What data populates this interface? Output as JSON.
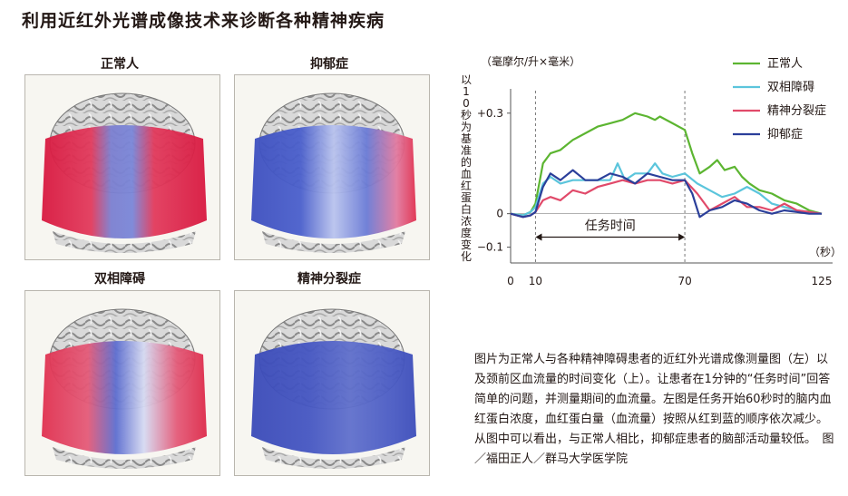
{
  "title": "利用近红外光谱成像技术来诊断各种精神疾病",
  "panels": [
    {
      "label": "正常人"
    },
    {
      "label": "抑郁症"
    },
    {
      "label": "双相障碍"
    },
    {
      "label": "精神分裂症"
    }
  ],
  "colors": {
    "normal": "#5cb531",
    "bipolar": "#5bc5dc",
    "schizophrenia": "#e14a6a",
    "depression": "#2b3f9a"
  },
  "caption": "图片为正常人与各种精神障碍患者的近红外光谱成像测量图（左）以及颈前区血流量的时间变化（上）。让患者在1分钟的“任务时间”回答简单的问题，并测量期间的血流量。左图是任务开始60秒时的脑内血红蛋白浓度，血红蛋白量（血流量）按照从红到蓝的顺序依次减少。从图中可以看出，与正常人相比，抑郁症患者的脑部活动量较低。　图／福田正人／群马大学医学院",
  "chart_data": {
    "type": "line",
    "unit_label": "（毫摩尔/升×毫米）",
    "ylabel": "以10秒为基准的血红蛋白浓度变化",
    "xlabel": "（秒）",
    "y_ticks": [
      "+0.3",
      "0",
      "−0.1"
    ],
    "x_ticks": [
      "0",
      "10",
      "70",
      "125"
    ],
    "annotation": "任务时间",
    "xlim": [
      0,
      125
    ],
    "ylim": [
      -0.12,
      0.34
    ],
    "task_window": [
      10,
      70
    ],
    "series": [
      {
        "name": "正常人",
        "color": "#5cb531",
        "x": [
          0,
          5,
          8,
          10,
          13,
          16,
          20,
          25,
          30,
          35,
          40,
          45,
          50,
          55,
          58,
          60,
          65,
          70,
          73,
          76,
          80,
          83,
          86,
          90,
          93,
          96,
          100,
          105,
          110,
          115,
          120,
          125
        ],
        "y": [
          0,
          -0.005,
          0.005,
          0.03,
          0.15,
          0.18,
          0.19,
          0.22,
          0.24,
          0.26,
          0.27,
          0.28,
          0.3,
          0.29,
          0.28,
          0.29,
          0.27,
          0.25,
          0.18,
          0.12,
          0.14,
          0.16,
          0.13,
          0.14,
          0.11,
          0.09,
          0.07,
          0.06,
          0.04,
          0.03,
          0.01,
          0
        ]
      },
      {
        "name": "双相障碍",
        "color": "#5bc5dc",
        "x": [
          0,
          5,
          8,
          10,
          13,
          16,
          20,
          25,
          30,
          35,
          40,
          43,
          46,
          50,
          55,
          58,
          61,
          65,
          70,
          75,
          80,
          85,
          90,
          95,
          100,
          105,
          110,
          115,
          120,
          125
        ],
        "y": [
          0,
          -0.005,
          0.005,
          0.02,
          0.09,
          0.11,
          0.09,
          0.1,
          0.1,
          0.1,
          0.1,
          0.15,
          0.1,
          0.12,
          0.12,
          0.15,
          0.12,
          0.11,
          0.12,
          0.09,
          0.07,
          0.05,
          0.06,
          0.08,
          0.06,
          0.03,
          0.02,
          0.01,
          0.005,
          0
        ]
      },
      {
        "name": "精神分裂症",
        "color": "#e14a6a",
        "x": [
          0,
          5,
          8,
          10,
          13,
          16,
          20,
          25,
          30,
          35,
          40,
          45,
          50,
          55,
          60,
          65,
          70,
          75,
          80,
          85,
          90,
          95,
          100,
          105,
          110,
          115,
          120,
          125
        ],
        "y": [
          0,
          -0.01,
          -0.005,
          0.005,
          0.04,
          0.05,
          0.04,
          0.07,
          0.06,
          0.08,
          0.09,
          0.1,
          0.09,
          0.1,
          0.1,
          0.09,
          0.1,
          0.06,
          0.01,
          0.03,
          0.05,
          0.02,
          0.02,
          0.01,
          0.03,
          0.01,
          0.005,
          0
        ]
      },
      {
        "name": "抑郁症",
        "color": "#2b3f9a",
        "x": [
          0,
          5,
          8,
          10,
          13,
          16,
          20,
          25,
          30,
          35,
          40,
          45,
          50,
          55,
          60,
          65,
          70,
          73,
          76,
          80,
          85,
          90,
          95,
          100,
          105,
          110,
          115,
          120,
          125
        ],
        "y": [
          0,
          -0.01,
          -0.005,
          0.005,
          0.08,
          0.12,
          0.1,
          0.13,
          0.1,
          0.1,
          0.12,
          0.11,
          0.09,
          0.12,
          0.11,
          0.1,
          0.1,
          0.06,
          -0.01,
          0.01,
          0.02,
          0.04,
          0.03,
          0.01,
          0.0,
          0.01,
          0.005,
          0.0,
          0
        ]
      }
    ]
  }
}
